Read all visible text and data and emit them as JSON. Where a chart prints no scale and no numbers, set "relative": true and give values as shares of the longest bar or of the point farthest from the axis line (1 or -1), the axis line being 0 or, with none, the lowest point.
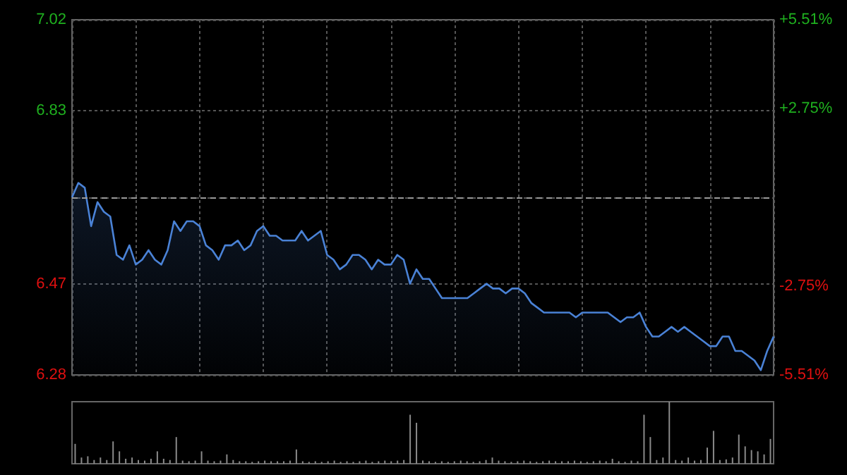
{
  "chart_data": [
    {
      "type": "area",
      "color": "#4a82d6",
      "categories": [
        null,
        null,
        null,
        null,
        null,
        null,
        null,
        null,
        null,
        null,
        null,
        null,
        null,
        null,
        null,
        null,
        null,
        null,
        null,
        null,
        null,
        null,
        null,
        null,
        null,
        null,
        null,
        null,
        null,
        null,
        null,
        null,
        null,
        null,
        null,
        null,
        null,
        null,
        null,
        null,
        null,
        null,
        null,
        null,
        null,
        null,
        null,
        null,
        null,
        null,
        null,
        null,
        null,
        null,
        null,
        null,
        null,
        null,
        null,
        null,
        null,
        null,
        null,
        null,
        null,
        null,
        null,
        null,
        null,
        null,
        null,
        null,
        null,
        null,
        null,
        null,
        null,
        null,
        null,
        null,
        null,
        null,
        null,
        null,
        null,
        null,
        null,
        null,
        null,
        null,
        null,
        null,
        null,
        null,
        null,
        null,
        null,
        null,
        null,
        null,
        null,
        null,
        null,
        null,
        null,
        null,
        null,
        null,
        null,
        null,
        null
      ],
      "values": [
        6.65,
        6.68,
        6.67,
        6.59,
        6.64,
        6.62,
        6.61,
        6.53,
        6.52,
        6.55,
        6.51,
        6.52,
        6.54,
        6.52,
        6.51,
        6.54,
        6.6,
        6.58,
        6.6,
        6.6,
        6.59,
        6.55,
        6.54,
        6.52,
        6.55,
        6.55,
        6.56,
        6.54,
        6.55,
        6.58,
        6.59,
        6.57,
        6.57,
        6.56,
        6.56,
        6.56,
        6.58,
        6.56,
        6.57,
        6.58,
        6.53,
        6.52,
        6.5,
        6.51,
        6.53,
        6.53,
        6.52,
        6.5,
        6.52,
        6.51,
        6.51,
        6.53,
        6.52,
        6.47,
        6.5,
        6.48,
        6.48,
        6.46,
        6.44,
        6.44,
        6.44,
        6.44,
        6.44,
        6.45,
        6.46,
        6.47,
        6.46,
        6.46,
        6.45,
        6.46,
        6.46,
        6.45,
        6.43,
        6.42,
        6.41,
        6.41,
        6.41,
        6.41,
        6.41,
        6.4,
        6.41,
        6.41,
        6.41,
        6.41,
        6.41,
        6.4,
        6.39,
        6.4,
        6.4,
        6.41,
        6.38,
        6.36,
        6.36,
        6.37,
        6.38,
        6.37,
        6.38,
        6.37,
        6.36,
        6.35,
        6.34,
        6.34,
        6.36,
        6.36,
        6.33,
        6.33,
        6.32,
        6.31,
        6.29,
        6.33,
        6.36
      ],
      "ylim": [
        6.28,
        7.02
      ],
      "yticks": [
        6.28,
        6.47,
        {
          "value": 6.65,
          "label": null
        },
        6.83,
        7.02
      ],
      "y2lim": [
        -5.51,
        5.51
      ],
      "y2ticks": [
        {
          "value": -5.51,
          "label": "-5.51%"
        },
        {
          "value": -2.75,
          "label": "-2.75%"
        },
        {
          "value": 2.75,
          "label": "+2.75%"
        },
        {
          "value": 5.51,
          "label": "+5.51%"
        }
      ],
      "ref_lines": [
        {
          "axis": "y",
          "value": 6.65,
          "color": "#9a9a9a",
          "line_style": "dashed"
        }
      ],
      "grid": true
    },
    {
      "type": "bar",
      "color": "#8a8a8a",
      "relative": true,
      "categories": [
        null,
        null,
        null,
        null,
        null,
        null,
        null,
        null,
        null,
        null,
        null,
        null,
        null,
        null,
        null,
        null,
        null,
        null,
        null,
        null,
        null,
        null,
        null,
        null,
        null,
        null,
        null,
        null,
        null,
        null,
        null,
        null,
        null,
        null,
        null,
        null,
        null,
        null,
        null,
        null,
        null,
        null,
        null,
        null,
        null,
        null,
        null,
        null,
        null,
        null,
        null,
        null,
        null,
        null,
        null,
        null,
        null,
        null,
        null,
        null,
        null,
        null,
        null,
        null,
        null,
        null,
        null,
        null,
        null,
        null,
        null,
        null,
        null,
        null,
        null,
        null,
        null,
        null,
        null,
        null,
        null,
        null,
        null,
        null,
        null,
        null,
        null,
        null,
        null,
        null,
        null,
        null,
        null,
        null,
        null,
        null,
        null,
        null,
        null,
        null,
        null,
        null,
        null,
        null,
        null,
        null,
        null,
        null,
        null,
        null,
        null
      ],
      "values": [
        0.32,
        0.1,
        0.12,
        0.06,
        0.1,
        0.06,
        0.36,
        0.2,
        0.08,
        0.1,
        0.06,
        0.05,
        0.08,
        0.2,
        0.08,
        0.06,
        0.43,
        0.05,
        0.04,
        0.05,
        0.2,
        0.05,
        0.04,
        0.05,
        0.15,
        0.06,
        0.04,
        0.04,
        0.03,
        0.04,
        0.05,
        0.04,
        0.04,
        0.04,
        0.05,
        0.23,
        0.04,
        0.03,
        0.04,
        0.03,
        0.04,
        0.05,
        0.03,
        0.04,
        0.03,
        0.04,
        0.05,
        0.03,
        0.04,
        0.05,
        0.04,
        0.05,
        0.06,
        0.79,
        0.66,
        0.05,
        0.04,
        0.03,
        0.04,
        0.03,
        0.04,
        0.05,
        0.04,
        0.03,
        0.04,
        0.06,
        0.1,
        0.05,
        0.04,
        0.03,
        0.04,
        0.05,
        0.04,
        0.03,
        0.04,
        0.05,
        0.04,
        0.04,
        0.04,
        0.05,
        0.04,
        0.03,
        0.04,
        0.05,
        0.04,
        0.08,
        0.04,
        0.03,
        0.05,
        0.04,
        0.79,
        0.43,
        0.06,
        0.1,
        1.0,
        0.06,
        0.05,
        0.1,
        0.05,
        0.06,
        0.26,
        0.53,
        0.06,
        0.07,
        0.1,
        0.47,
        0.28,
        0.22,
        0.2,
        0.15,
        0.4
      ]
    }
  ]
}
